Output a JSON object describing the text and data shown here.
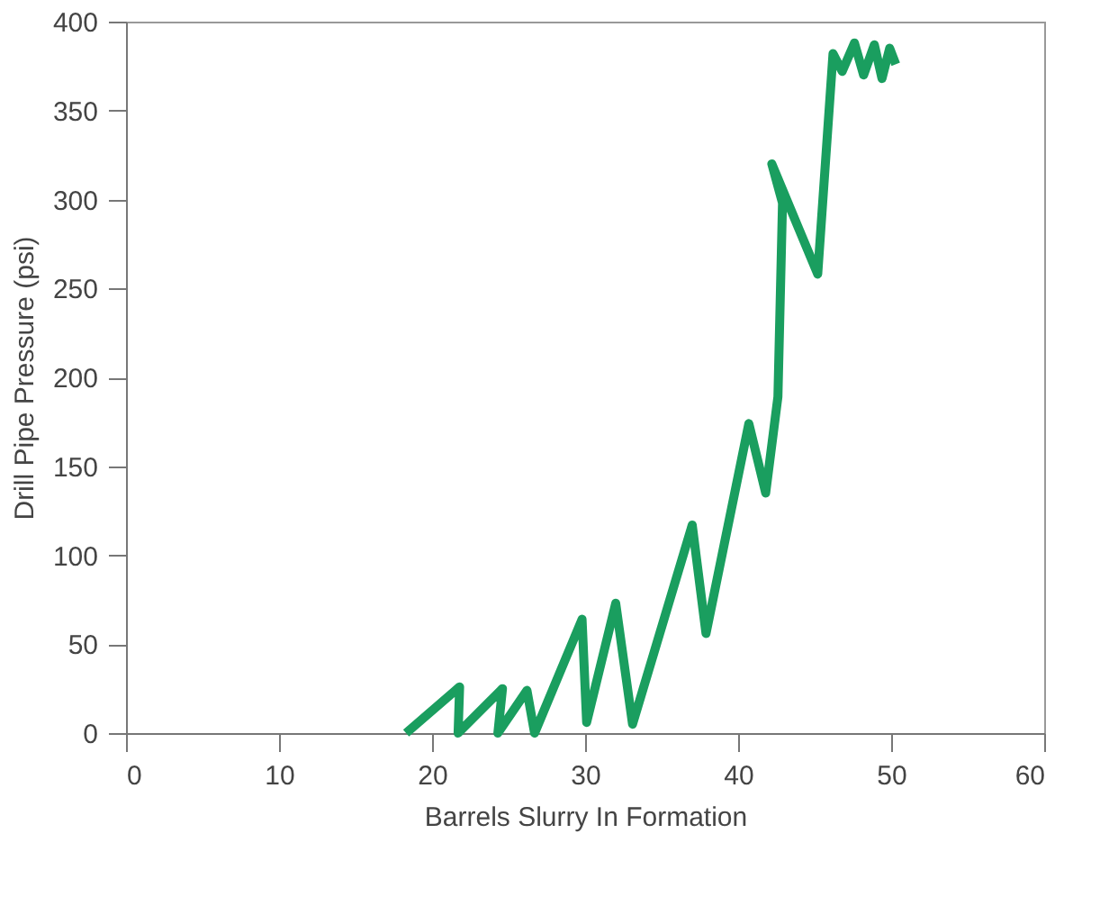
{
  "chart_data": {
    "type": "line",
    "xlabel": "Barrels Slurry In Formation",
    "ylabel": "Drill Pipe Pressure (psi)",
    "x": [
      18.3,
      21.8,
      21.7,
      24.6,
      24.3,
      26.2,
      26.7,
      29.8,
      30.1,
      32.0,
      33.1,
      37.0,
      37.9,
      40.7,
      41.8,
      42.6,
      42.9,
      42.2,
      45.2,
      46.2,
      46.8,
      47.6,
      48.2,
      48.9,
      49.4,
      49.9,
      50.3
    ],
    "series": [
      {
        "color": "#1a9e5f",
        "values": [
          0,
          26,
          0,
          25,
          0,
          24,
          0,
          64,
          6,
          73,
          5,
          117,
          56,
          174,
          135,
          189,
          298,
          320,
          258,
          382,
          372,
          388,
          370,
          387,
          368,
          385,
          376
        ]
      }
    ],
    "xlim": [
      0,
      60
    ],
    "xticks": [
      0,
      10,
      20,
      30,
      40,
      50,
      60
    ],
    "ylim": [
      0,
      400
    ],
    "yticks": [
      0,
      50,
      100,
      150,
      200,
      250,
      300,
      350,
      400
    ],
    "grid": false,
    "marker": "none",
    "line_style": "solid"
  }
}
